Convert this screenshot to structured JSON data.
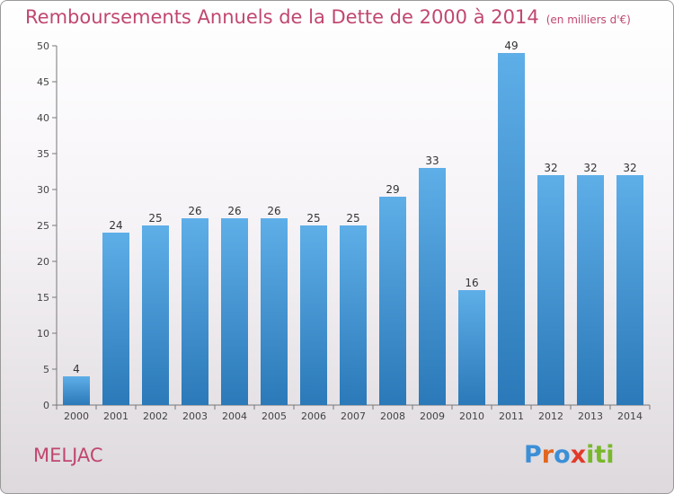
{
  "title": "Remboursements Annuels de la Dette de 2000 à 2014",
  "unit": "(en milliers d'€)",
  "town": "MELJAC",
  "logo": {
    "text": "Proxiti",
    "letters": [
      "P",
      "r",
      "o",
      "x",
      "i",
      "t",
      "i"
    ],
    "colors": [
      "#3c8fd6",
      "#e2661f",
      "#3c8fd6",
      "#e23a2a",
      "#79b82c",
      "#79b82c",
      "#79b82c"
    ]
  },
  "colors": {
    "title": "#c1476f",
    "bar_top": "#5eaee8",
    "bar_bottom": "#2b79b8"
  },
  "chart_data": {
    "type": "bar",
    "title": "Remboursements Annuels de la Dette de 2000 à 2014",
    "categories": [
      "2000",
      "2001",
      "2002",
      "2003",
      "2004",
      "2005",
      "2006",
      "2007",
      "2008",
      "2009",
      "2010",
      "2011",
      "2012",
      "2013",
      "2014"
    ],
    "values": [
      4,
      24,
      25,
      26,
      26,
      26,
      25,
      25,
      29,
      33,
      16,
      49,
      32,
      32,
      32
    ],
    "ylim": [
      0,
      50
    ],
    "yticks": [
      0,
      5,
      10,
      15,
      20,
      25,
      30,
      35,
      40,
      45,
      50
    ],
    "grid": false,
    "data_labels": true
  }
}
